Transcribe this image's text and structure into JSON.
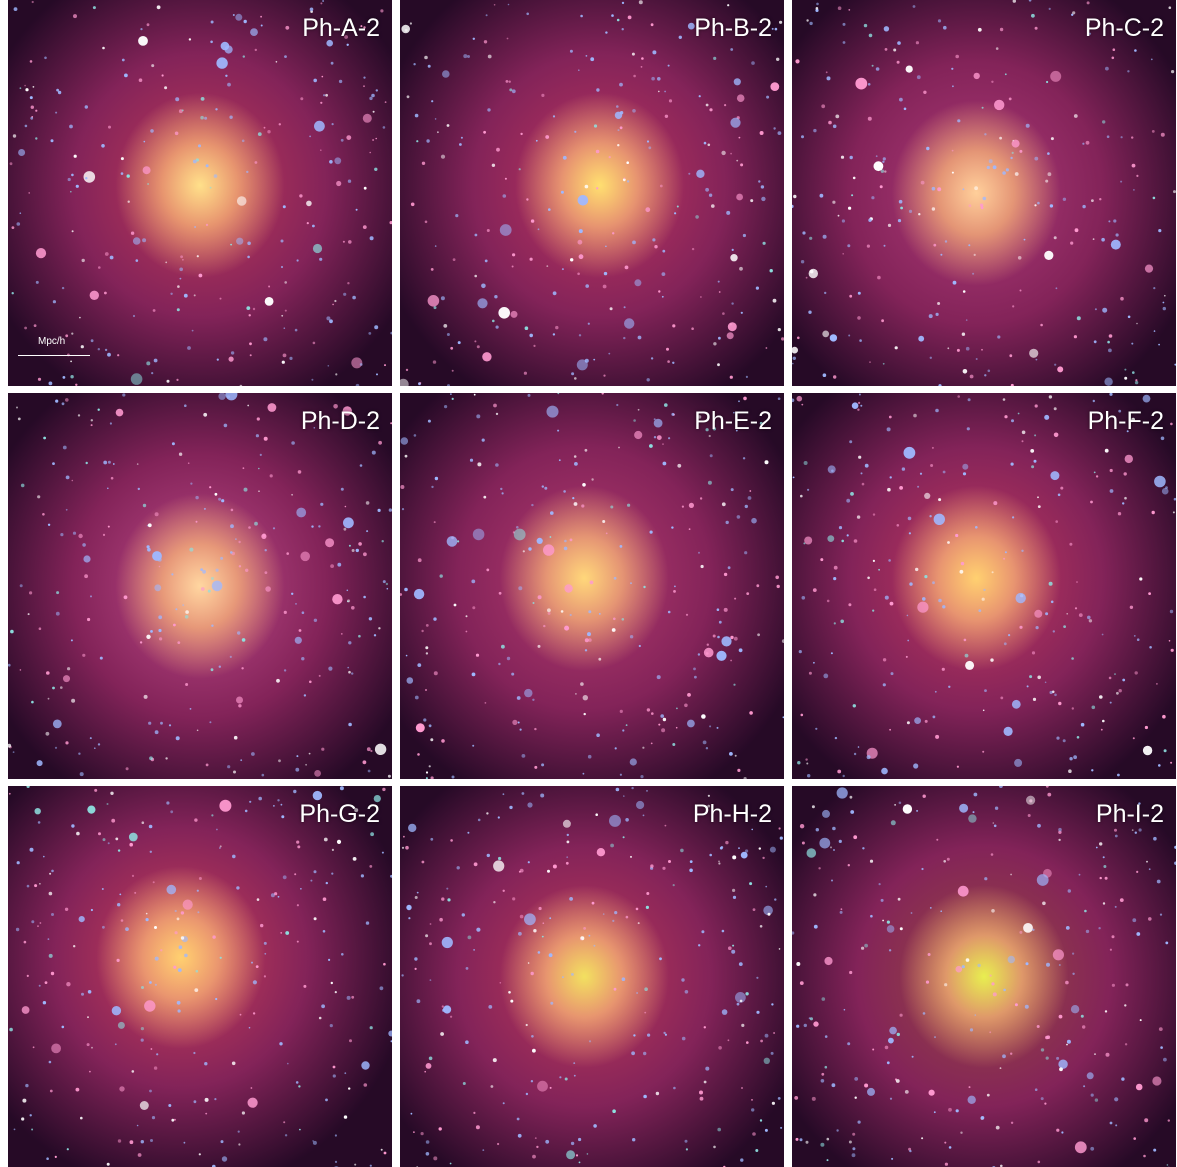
{
  "panels": [
    {
      "label": "Ph-A-2"
    },
    {
      "label": "Ph-B-2"
    },
    {
      "label": "Ph-C-2"
    },
    {
      "label": "Ph-D-2"
    },
    {
      "label": "Ph-E-2"
    },
    {
      "label": "Ph-F-2"
    },
    {
      "label": "Ph-G-2"
    },
    {
      "label": "Ph-H-2"
    },
    {
      "label": "Ph-I-2"
    }
  ],
  "scale_bar": {
    "label": "Mpc/h"
  }
}
